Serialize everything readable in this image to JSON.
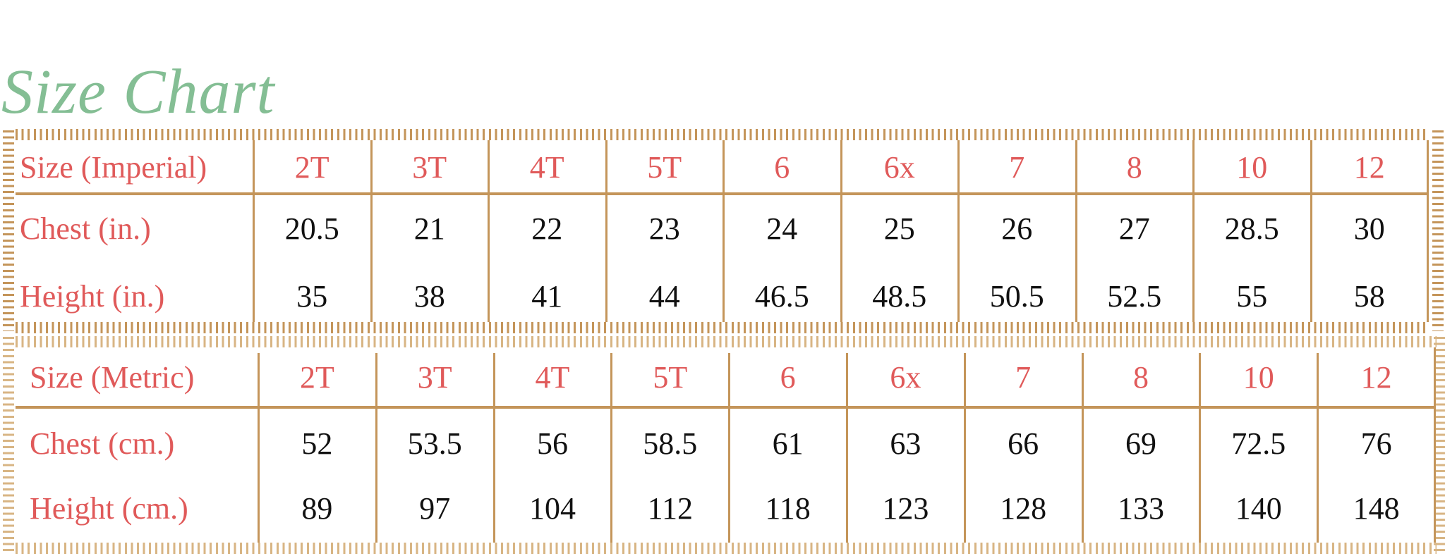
{
  "title": "Size Chart",
  "colors": {
    "title": "#84BE94",
    "labels": "#E05A5A",
    "rules": "#C4955A",
    "values": "#111111"
  },
  "imperial": {
    "header": "Size (Imperial)",
    "sizes": [
      "2T",
      "3T",
      "4T",
      "5T",
      "6",
      "6x",
      "7",
      "8",
      "10",
      "12"
    ],
    "rows": [
      {
        "label": "Chest (in.)",
        "values": [
          "20.5",
          "21",
          "22",
          "23",
          "24",
          "25",
          "26",
          "27",
          "28.5",
          "30"
        ]
      },
      {
        "label": "Height (in.)",
        "values": [
          "35",
          "38",
          "41",
          "44",
          "46.5",
          "48.5",
          "50.5",
          "52.5",
          "55",
          "58"
        ]
      }
    ]
  },
  "metric": {
    "header": "Size (Metric)",
    "sizes": [
      "2T",
      "3T",
      "4T",
      "5T",
      "6",
      "6x",
      "7",
      "8",
      "10",
      "12"
    ],
    "rows": [
      {
        "label": "Chest (cm.)",
        "values": [
          "52",
          "53.5",
          "56",
          "58.5",
          "61",
          "63",
          "66",
          "69",
          "72.5",
          "76"
        ]
      },
      {
        "label": "Height (cm.)",
        "values": [
          "89",
          "97",
          "104",
          "112",
          "118",
          "123",
          "128",
          "133",
          "140",
          "148"
        ]
      }
    ]
  }
}
